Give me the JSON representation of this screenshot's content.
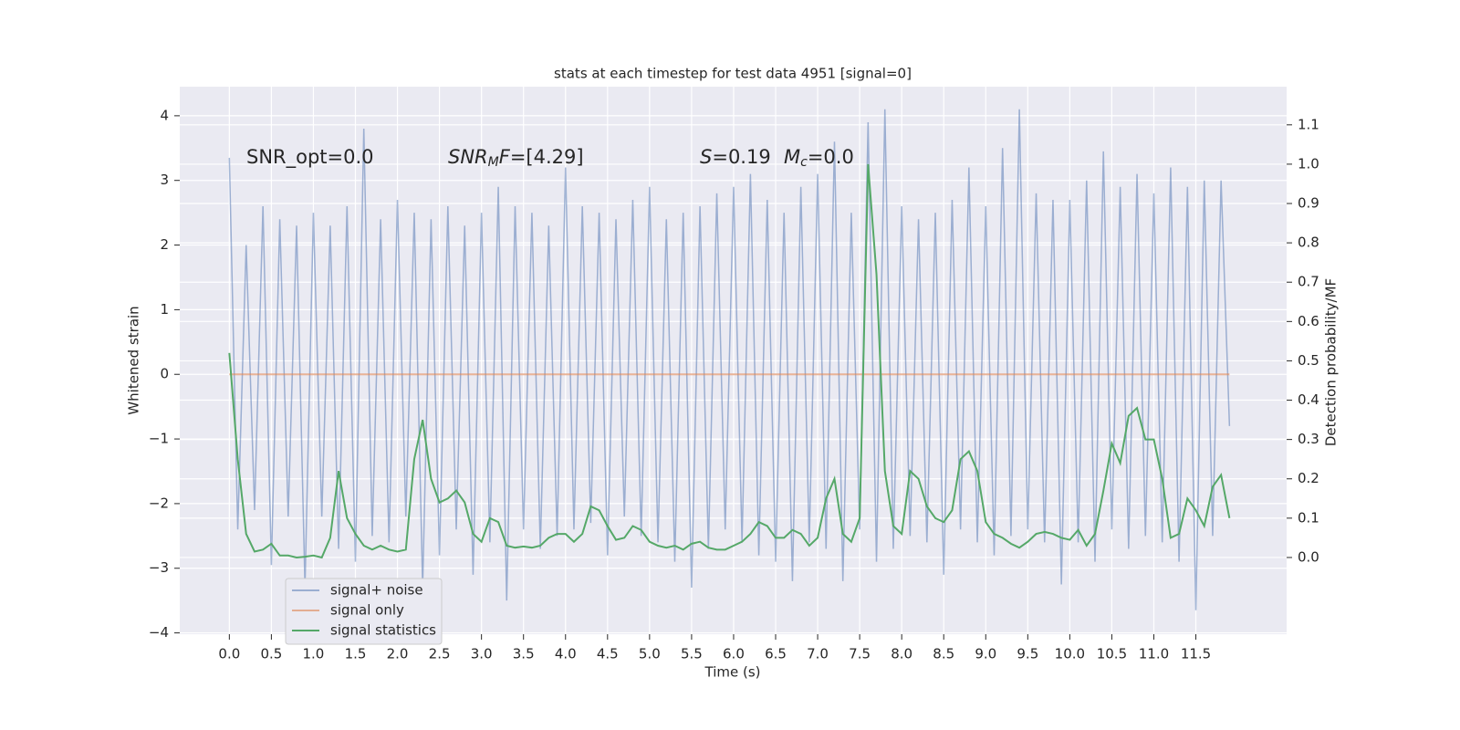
{
  "chart_data": {
    "type": "line",
    "title": "stats at each timestep for test data 4951 [signal=0]",
    "xlabel": "Time (s)",
    "ylabel": "Whitened strain",
    "y2label": "Detection probability/MF",
    "xlim": [
      -0.59,
      12.58
    ],
    "ylim": [
      -4.02,
      4.45
    ],
    "y2lim": [
      -0.195,
      1.197
    ],
    "grid": true,
    "xticks": [
      {
        "value": 0,
        "label": "0.0"
      },
      0.5,
      {
        "value": 1,
        "label": "1.0"
      },
      1.5,
      {
        "value": 2,
        "label": "2.0"
      },
      2.5,
      {
        "value": 3,
        "label": "3.0"
      },
      3.5,
      {
        "value": 4,
        "label": "4.0"
      },
      4.5,
      {
        "value": 5,
        "label": "5.0"
      },
      5.5,
      {
        "value": 6,
        "label": "6.0"
      },
      6.5,
      {
        "value": 7,
        "label": "7.0"
      },
      7.5,
      {
        "value": 8,
        "label": "8.0"
      },
      8.5,
      {
        "value": 9,
        "label": "9.0"
      },
      9.5,
      {
        "value": 10,
        "label": "10.0"
      },
      10.5,
      {
        "value": 11,
        "label": "11.0"
      },
      11.5
    ],
    "yticks": [
      {
        "value": -4,
        "label": "−4"
      },
      {
        "value": -3,
        "label": "−3"
      },
      {
        "value": -2,
        "label": "−2"
      },
      {
        "value": -1,
        "label": "−1"
      },
      0,
      1,
      2,
      3,
      4
    ],
    "y2ticks": [
      {
        "value": 0,
        "label": "0.0"
      },
      0.1,
      0.2,
      0.3,
      0.4,
      0.5,
      0.6,
      0.7,
      0.8,
      0.9,
      {
        "value": 1,
        "label": "1.0"
      },
      1.1
    ],
    "annotations": [
      [
        {
          "text": "SNR_opt=0.0"
        }
      ],
      [
        {
          "text": "SNR",
          "italic": true
        },
        {
          "text": "M",
          "italic": true,
          "sub": true
        },
        {
          "text": "F",
          "italic": true
        },
        {
          "text": "=[4.29]"
        }
      ],
      [
        {
          "text": "S",
          "italic": true
        },
        {
          "text": "=0.19"
        }
      ],
      [
        {
          "text": "M",
          "italic": true
        },
        {
          "text": "c",
          "italic": true,
          "sub": true
        },
        {
          "text": "=0.0"
        }
      ]
    ],
    "x": [
      0.0,
      0.1,
      0.2,
      0.3,
      0.4,
      0.5,
      0.6,
      0.7,
      0.8,
      0.9,
      1.0,
      1.1,
      1.2,
      1.3,
      1.4,
      1.5,
      1.6,
      1.7,
      1.8,
      1.9,
      2.0,
      2.1,
      2.2,
      2.3,
      2.4,
      2.5,
      2.6,
      2.7,
      2.8,
      2.9,
      3.0,
      3.1,
      3.2,
      3.3,
      3.4,
      3.5,
      3.6,
      3.7,
      3.8,
      3.9,
      4.0,
      4.1,
      4.2,
      4.3,
      4.4,
      4.5,
      4.6,
      4.7,
      4.8,
      4.9,
      5.0,
      5.1,
      5.2,
      5.3,
      5.4,
      5.5,
      5.6,
      5.7,
      5.8,
      5.9,
      6.0,
      6.1,
      6.2,
      6.3,
      6.4,
      6.5,
      6.6,
      6.7,
      6.8,
      6.9,
      7.0,
      7.1,
      7.2,
      7.3,
      7.4,
      7.5,
      7.6,
      7.7,
      7.8,
      7.9,
      8.0,
      8.1,
      8.2,
      8.3,
      8.4,
      8.5,
      8.6,
      8.7,
      8.8,
      8.9,
      9.0,
      9.1,
      9.2,
      9.3,
      9.4,
      9.5,
      9.6,
      9.7,
      9.8,
      9.9,
      10.0,
      10.1,
      10.2,
      10.3,
      10.4,
      10.5,
      10.6,
      10.7,
      10.8,
      10.9,
      11.0,
      11.1,
      11.2,
      11.3,
      11.4,
      11.5,
      11.6,
      11.7,
      11.8,
      11.9
    ],
    "series": [
      {
        "name": "signal+ noise",
        "color": "#4c72b0",
        "values": [
          3.35,
          -2.4,
          2.0,
          -2.1,
          2.6,
          -2.95,
          2.4,
          -2.2,
          2.3,
          -3.3,
          2.5,
          -2.2,
          2.3,
          -2.7,
          2.6,
          -2.9,
          3.8,
          -2.5,
          2.4,
          -2.6,
          2.7,
          -2.2,
          2.5,
          -3.3,
          2.4,
          -2.8,
          2.6,
          -2.4,
          2.3,
          -3.1,
          2.5,
          -2.6,
          2.9,
          -3.5,
          2.6,
          -2.4,
          2.5,
          -2.7,
          2.3,
          -2.5,
          3.2,
          -2.4,
          2.6,
          -2.3,
          2.5,
          -2.8,
          2.4,
          -2.2,
          2.7,
          -2.5,
          2.9,
          -2.6,
          2.4,
          -2.9,
          2.5,
          -3.3,
          2.6,
          -2.7,
          2.8,
          -2.4,
          2.9,
          -2.6,
          3.1,
          -2.8,
          2.7,
          -2.9,
          2.5,
          -3.2,
          2.9,
          -2.6,
          3.1,
          -2.7,
          3.6,
          -3.2,
          2.5,
          -2.4,
          3.9,
          -2.9,
          4.1,
          -2.7,
          2.6,
          -2.5,
          2.4,
          -2.6,
          2.5,
          -3.1,
          2.7,
          -2.4,
          3.2,
          -2.6,
          2.6,
          -2.8,
          3.5,
          -2.5,
          4.1,
          -2.4,
          2.8,
          -2.6,
          2.7,
          -3.25,
          2.7,
          -2.6,
          3.0,
          -2.9,
          3.45,
          -2.4,
          2.9,
          -2.7,
          3.1,
          -2.5,
          2.8,
          -2.6,
          3.2,
          -2.9,
          2.9,
          -3.65,
          3.0,
          -2.5,
          3.0,
          -0.8
        ]
      },
      {
        "name": "signal only",
        "color": "#dd8452",
        "values": [
          0,
          0,
          0,
          0,
          0,
          0,
          0,
          0,
          0,
          0,
          0,
          0,
          0,
          0,
          0,
          0,
          0,
          0,
          0,
          0,
          0,
          0,
          0,
          0,
          0,
          0,
          0,
          0,
          0,
          0,
          0,
          0,
          0,
          0,
          0,
          0,
          0,
          0,
          0,
          0,
          0,
          0,
          0,
          0,
          0,
          0,
          0,
          0,
          0,
          0,
          0,
          0,
          0,
          0,
          0,
          0,
          0,
          0,
          0,
          0,
          0,
          0,
          0,
          0,
          0,
          0,
          0,
          0,
          0,
          0,
          0,
          0,
          0,
          0,
          0,
          0,
          0,
          0,
          0,
          0,
          0,
          0,
          0,
          0,
          0,
          0,
          0,
          0,
          0,
          0,
          0,
          0,
          0,
          0,
          0,
          0,
          0,
          0,
          0,
          0,
          0,
          0,
          0,
          0,
          0,
          0,
          0,
          0,
          0,
          0,
          0,
          0,
          0,
          0,
          0,
          0,
          0,
          0,
          0,
          0
        ]
      },
      {
        "name": "signal statistics",
        "color": "#55a868",
        "axis": "y2",
        "values": [
          0.52,
          0.25,
          0.06,
          0.015,
          0.02,
          0.035,
          0.005,
          0.005,
          0.0,
          0.002,
          0.005,
          0.0,
          0.05,
          0.22,
          0.1,
          0.06,
          0.03,
          0.02,
          0.03,
          0.02,
          0.015,
          0.02,
          0.25,
          0.35,
          0.2,
          0.14,
          0.15,
          0.17,
          0.14,
          0.06,
          0.04,
          0.1,
          0.09,
          0.03,
          0.025,
          0.028,
          0.025,
          0.03,
          0.05,
          0.06,
          0.06,
          0.04,
          0.06,
          0.13,
          0.12,
          0.08,
          0.045,
          0.05,
          0.08,
          0.07,
          0.04,
          0.03,
          0.025,
          0.03,
          0.02,
          0.035,
          0.04,
          0.025,
          0.02,
          0.02,
          0.03,
          0.04,
          0.06,
          0.09,
          0.08,
          0.05,
          0.05,
          0.07,
          0.06,
          0.03,
          0.05,
          0.15,
          0.2,
          0.06,
          0.04,
          0.1,
          1.0,
          0.72,
          0.22,
          0.08,
          0.06,
          0.22,
          0.2,
          0.13,
          0.1,
          0.09,
          0.12,
          0.25,
          0.27,
          0.22,
          0.09,
          0.06,
          0.05,
          0.035,
          0.025,
          0.04,
          0.06,
          0.065,
          0.06,
          0.05,
          0.045,
          0.07,
          0.03,
          0.06,
          0.17,
          0.29,
          0.24,
          0.36,
          0.38,
          0.3,
          0.3,
          0.2,
          0.05,
          0.06,
          0.15,
          0.12,
          0.08,
          0.18,
          0.21,
          0.1
        ]
      }
    ]
  }
}
